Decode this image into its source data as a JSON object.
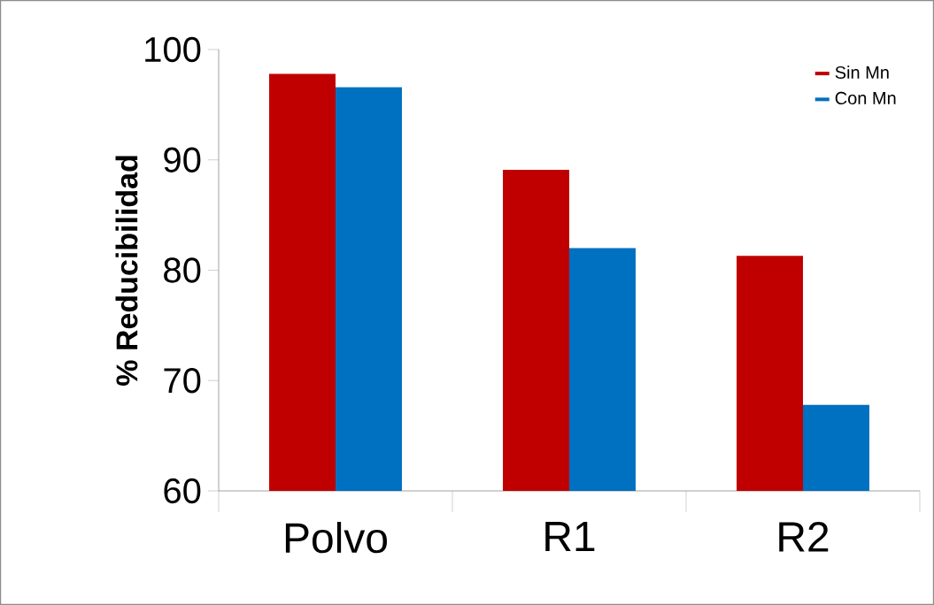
{
  "chart_data": {
    "type": "bar",
    "ylabel": "% Reducibilidad",
    "categories": [
      "Polvo",
      "R1",
      "R2"
    ],
    "series": [
      {
        "name": "Sin Mn",
        "color": "#c00000",
        "values": [
          97.8,
          89.1,
          81.3
        ]
      },
      {
        "name": "Con Mn",
        "color": "#0070c0",
        "values": [
          96.6,
          82.0,
          67.8
        ]
      }
    ],
    "ylim": [
      60,
      100
    ],
    "yticks": [
      60,
      70,
      80,
      90,
      100
    ],
    "legend": "top right"
  }
}
